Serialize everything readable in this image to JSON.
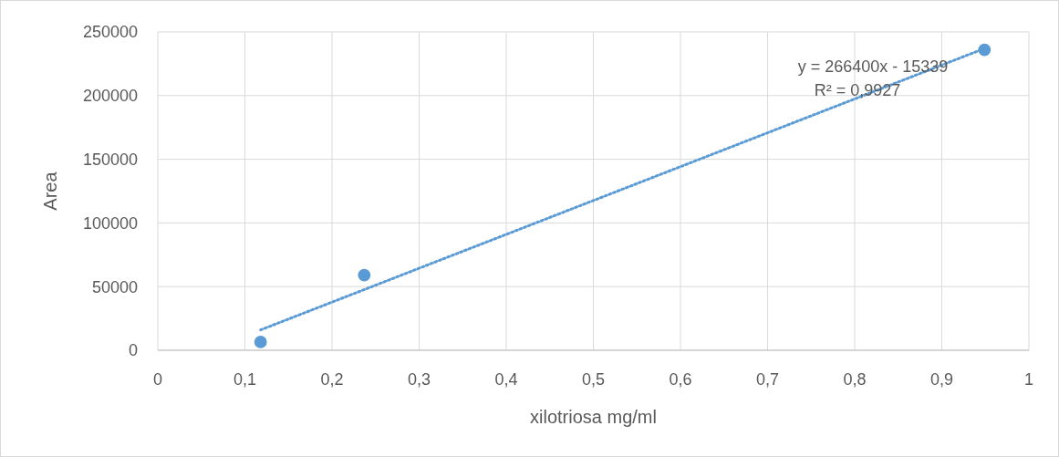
{
  "chart_data": {
    "type": "scatter",
    "xlabel": "xilotriosa mg/ml",
    "ylabel": "Area",
    "xlim": [
      0,
      1
    ],
    "ylim": [
      0,
      250000
    ],
    "xticks": [
      0,
      {
        "value": 0.1,
        "label": "0,1"
      },
      {
        "value": 0.2,
        "label": "0,2"
      },
      {
        "value": 0.3,
        "label": "0,3"
      },
      {
        "value": 0.4,
        "label": "0,4"
      },
      {
        "value": 0.5,
        "label": "0,5"
      },
      {
        "value": 0.6,
        "label": "0,6"
      },
      {
        "value": 0.7,
        "label": "0,7"
      },
      {
        "value": 0.8,
        "label": "0,8"
      },
      {
        "value": 0.9,
        "label": "0,9"
      },
      1
    ],
    "yticks": [
      0,
      50000,
      100000,
      150000,
      200000,
      250000
    ],
    "grid": true,
    "series": [
      {
        "color": "#5b9bd5",
        "marker": "circle",
        "x": [
          0.118,
          0.237,
          0.949
        ],
        "values": [
          6500,
          59000,
          236000
        ]
      },
      {
        "type": "line",
        "color": "#5b9bd5",
        "marker": "none",
        "line_style": "dotted",
        "x": [
          0.118,
          0.949
        ],
        "values": [
          16000,
          237000
        ]
      }
    ],
    "annotations": [
      "y = 266400x - 15339",
      "R² = 0,9927"
    ]
  }
}
